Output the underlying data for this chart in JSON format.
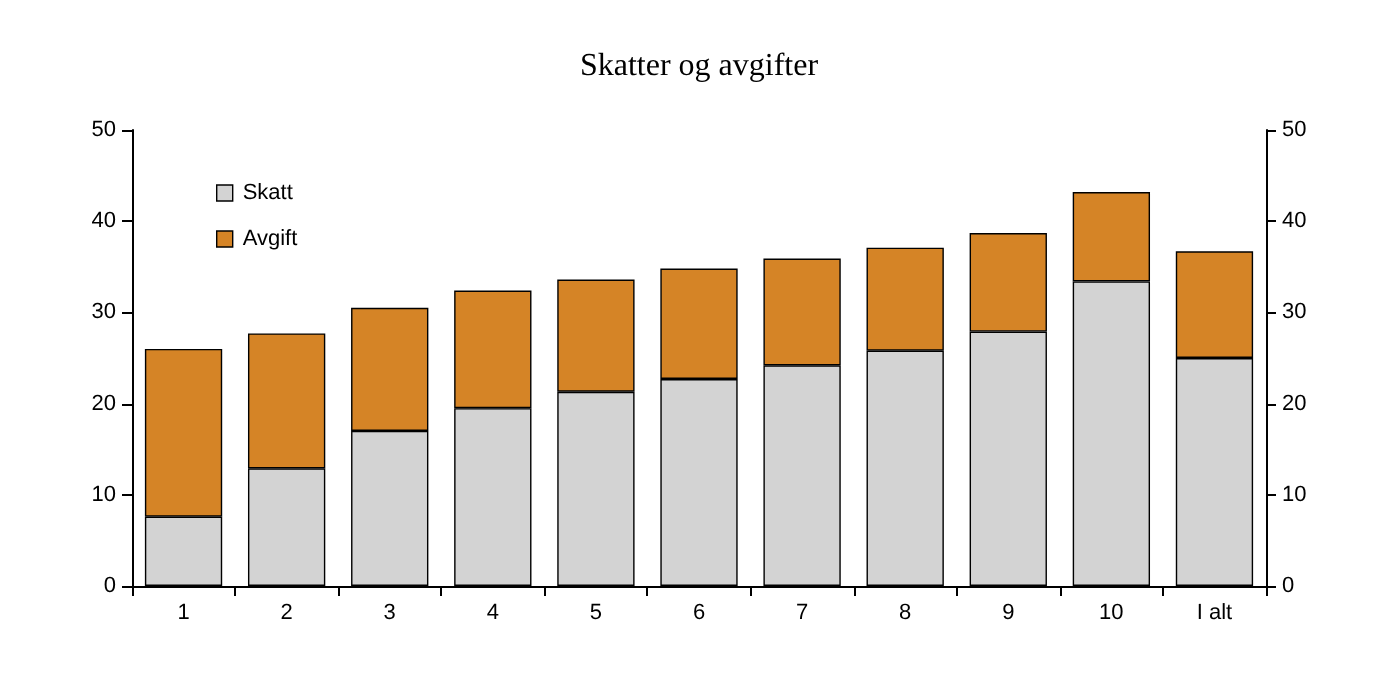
{
  "chart_data": {
    "type": "bar",
    "title": "Skatter og avgifter",
    "stacked": true,
    "categories": [
      "1",
      "2",
      "3",
      "4",
      "5",
      "6",
      "7",
      "8",
      "9",
      "10",
      "I alt"
    ],
    "series": [
      {
        "name": "Skatt",
        "color": "#d3d3d3",
        "values": [
          7.6,
          12.9,
          17.0,
          19.5,
          21.3,
          22.7,
          24.2,
          25.8,
          27.9,
          33.4,
          25.0
        ]
      },
      {
        "name": "Avgift",
        "color": "#d58426",
        "values": [
          18.4,
          14.8,
          13.5,
          12.9,
          12.3,
          12.1,
          11.7,
          11.3,
          10.8,
          9.8,
          11.7
        ]
      }
    ],
    "ylim": [
      0,
      50
    ],
    "yticks": [
      0,
      10,
      20,
      30,
      40,
      50
    ],
    "y2lim": [
      0,
      50
    ],
    "y2ticks": [
      0,
      10,
      20,
      30,
      40,
      50
    ],
    "grid": false,
    "legend": "top left"
  }
}
